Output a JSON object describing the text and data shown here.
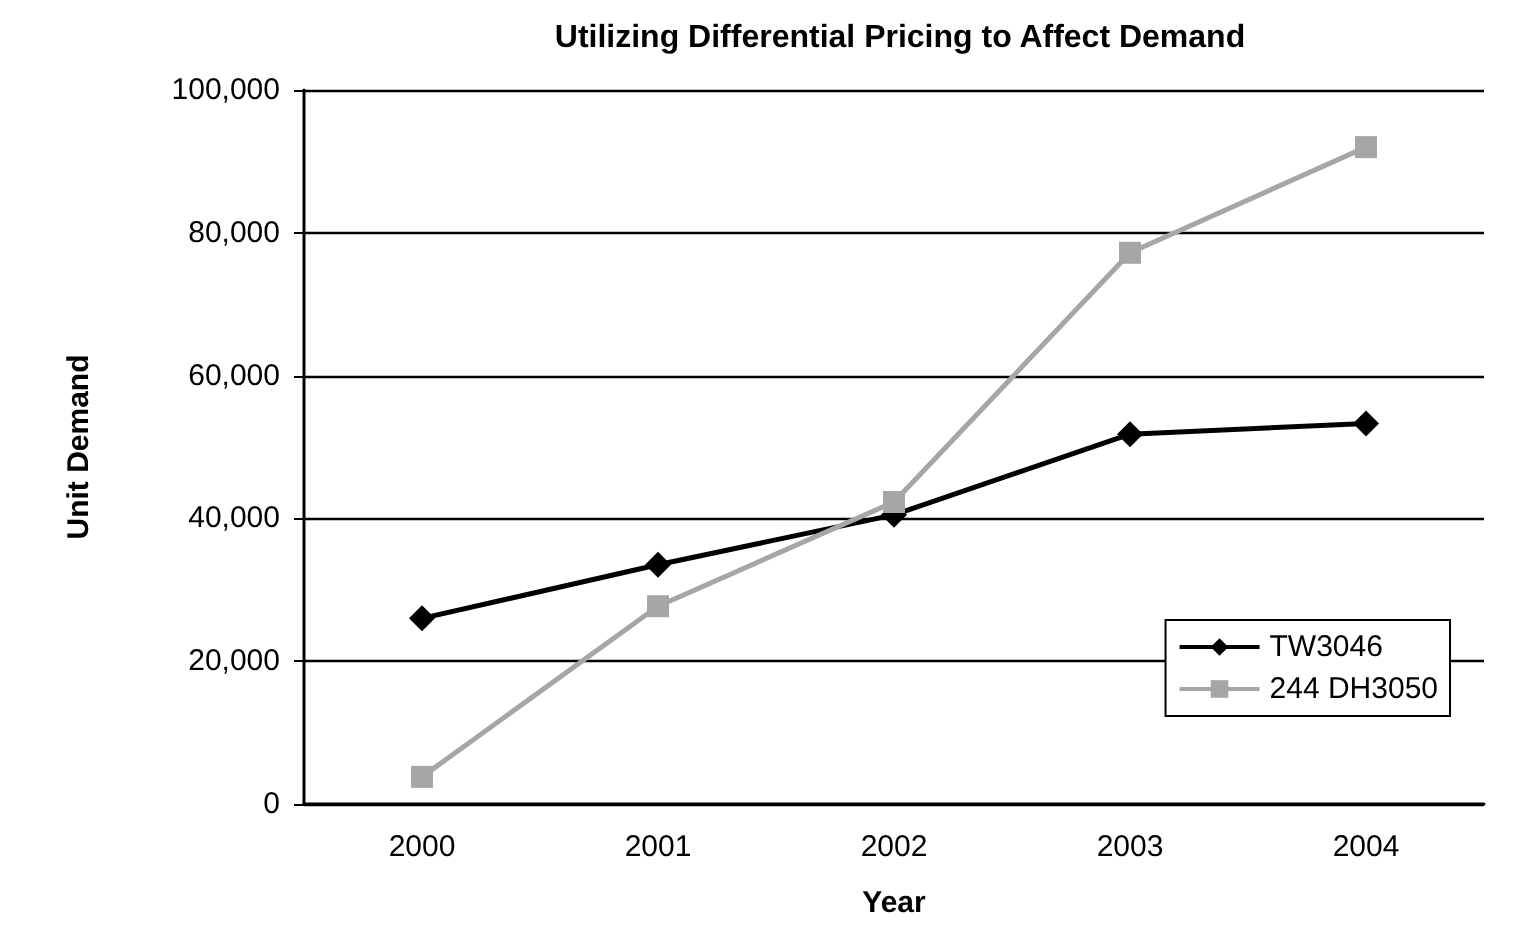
{
  "chart_data": {
    "type": "line",
    "title": "Utilizing Differential Pricing to Affect Demand",
    "xlabel": "Year",
    "ylabel": "Unit Demand",
    "categories": [
      "2000",
      "2001",
      "2002",
      "2003",
      "2004"
    ],
    "series": [
      {
        "name": "TW3046",
        "color": "#000000",
        "marker": "diamond",
        "values": [
          26000,
          33500,
          40500,
          51800,
          53300
        ]
      },
      {
        "name": "244 DH3050",
        "color": "#a6a6a6",
        "marker": "square",
        "values": [
          3800,
          27700,
          42300,
          77200,
          92000
        ]
      }
    ],
    "ylim": [
      0,
      100000
    ],
    "yticks": [
      0,
      {
        "value": 20000,
        "label": "20,000"
      },
      {
        "value": 40000,
        "label": "40,000"
      },
      {
        "value": 60000,
        "label": "60,000"
      },
      {
        "value": 80000,
        "label": "80,000"
      },
      {
        "value": 100000,
        "label": "100,000"
      }
    ],
    "grid": "y",
    "legend": "bottom right",
    "line_style": "solid"
  }
}
